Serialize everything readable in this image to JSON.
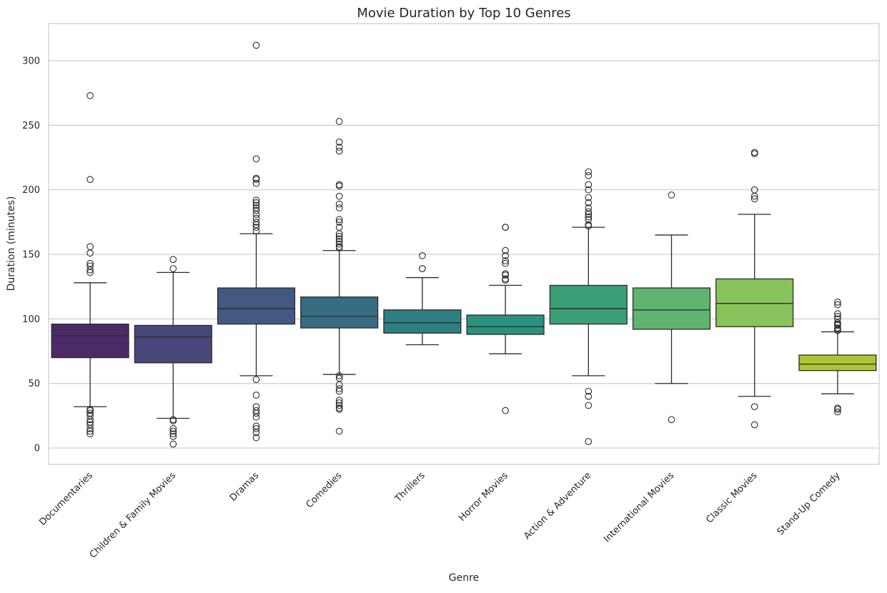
{
  "chart_data": {
    "type": "boxplot",
    "title": "Movie Duration by Top 10 Genres",
    "xlabel": "Genre",
    "ylabel": "Duration (minutes)",
    "ylim": [
      -12.7,
      328.8
    ],
    "yticks": [
      0,
      50,
      100,
      150,
      200,
      250,
      300
    ],
    "grid": "horizontal",
    "categories": [
      "Documentaries",
      "Children & Family Movies",
      "Dramas",
      "Comedies",
      "Thrillers",
      "Horror Movies",
      "Action & Adventure",
      "International Movies",
      "Classic Movies",
      "Stand-Up Comedy"
    ],
    "colors": [
      "#4b2a66",
      "#49467a",
      "#425a82",
      "#376c82",
      "#2e7f83",
      "#2b917d",
      "#3a9e76",
      "#5fb470",
      "#89c35b",
      "#afc434"
    ],
    "boxes": [
      {
        "whislo": 32,
        "q1": 70,
        "med": 87,
        "q3": 96,
        "whishi": 128,
        "fliers": [
          273,
          208,
          156,
          151,
          143,
          141,
          138,
          136,
          30,
          29,
          27,
          25,
          22,
          20,
          18,
          15,
          13,
          11
        ]
      },
      {
        "whislo": 23,
        "q1": 66,
        "med": 86,
        "q3": 95,
        "whishi": 136,
        "fliers": [
          146,
          139,
          22,
          21,
          15,
          13,
          11,
          9,
          3
        ]
      },
      {
        "whislo": 56,
        "q1": 96,
        "med": 108,
        "q3": 124,
        "whishi": 166,
        "fliers": [
          312,
          224,
          209,
          208,
          205,
          192,
          190,
          188,
          186,
          184,
          181,
          178,
          175,
          173,
          171,
          168,
          53,
          41,
          32,
          29,
          27,
          24,
          17,
          15,
          12,
          8
        ]
      },
      {
        "whislo": 57,
        "q1": 93,
        "med": 102,
        "q3": 117,
        "whishi": 153,
        "fliers": [
          253,
          237,
          233,
          230,
          204,
          203,
          195,
          189,
          186,
          177,
          175,
          171,
          166,
          164,
          162,
          160,
          158,
          156,
          155,
          56,
          54,
          49,
          46,
          44,
          37,
          35,
          33,
          31,
          30,
          13
        ]
      },
      {
        "whislo": 80,
        "q1": 89,
        "med": 97,
        "q3": 107,
        "whishi": 132,
        "fliers": [
          149,
          139,
          139
        ]
      },
      {
        "whislo": 73,
        "q1": 88,
        "med": 94,
        "q3": 103,
        "whishi": 126,
        "fliers": [
          171,
          171,
          153,
          149,
          145,
          143,
          135,
          134,
          131,
          130,
          29
        ]
      },
      {
        "whislo": 56,
        "q1": 96,
        "med": 108,
        "q3": 126,
        "whishi": 171,
        "fliers": [
          214,
          211,
          204,
          200,
          194,
          190,
          186,
          183,
          181,
          179,
          177,
          173,
          172,
          44,
          40,
          33,
          5
        ]
      },
      {
        "whislo": 50,
        "q1": 92,
        "med": 107,
        "q3": 124,
        "whishi": 165,
        "fliers": [
          196,
          22
        ]
      },
      {
        "whislo": 40,
        "q1": 94,
        "med": 112,
        "q3": 131,
        "whishi": 181,
        "fliers": [
          229,
          228,
          200,
          195,
          193,
          32,
          18
        ]
      },
      {
        "whislo": 42,
        "q1": 60,
        "med": 65,
        "q3": 72,
        "whishi": 90,
        "fliers": [
          113,
          111,
          104,
          102,
          100,
          97,
          96,
          95,
          93,
          92,
          91,
          31,
          30,
          28
        ]
      }
    ]
  }
}
